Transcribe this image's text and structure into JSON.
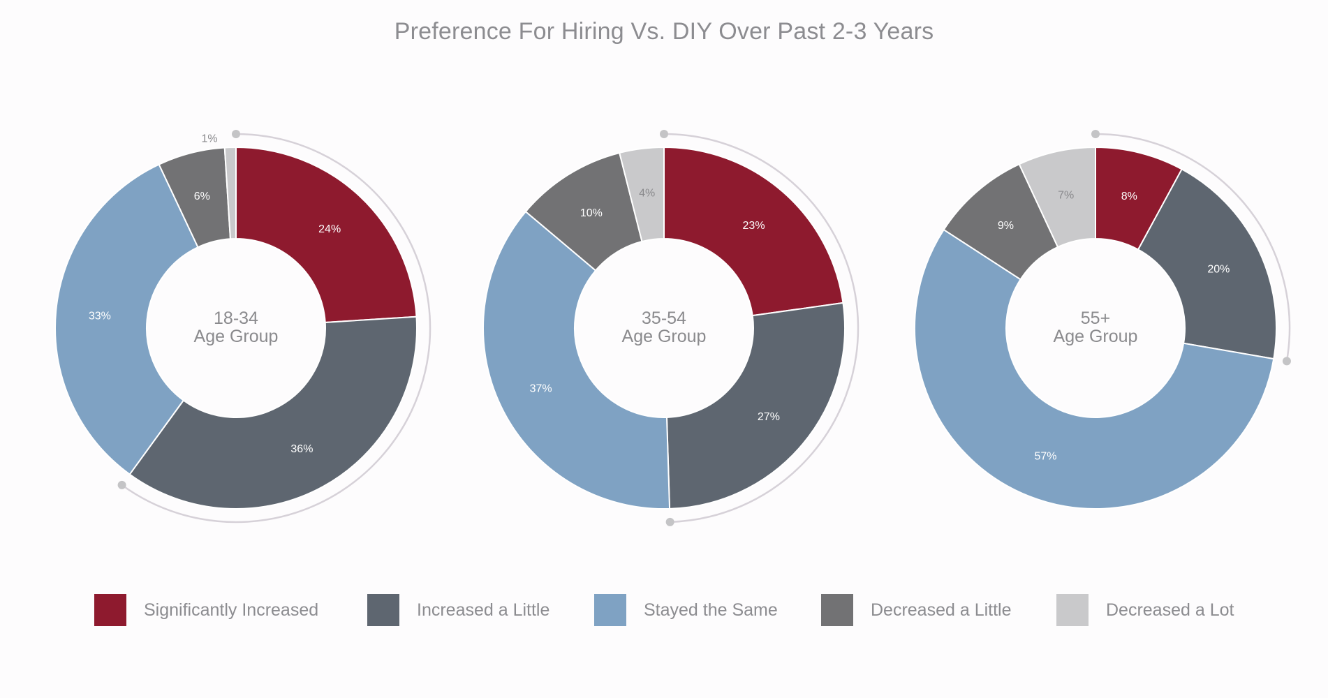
{
  "chart_data": {
    "type": "donut",
    "title": "Preference For Hiring Vs. DIY Over Past 2-3 Years",
    "categories": [
      "Significantly Increased",
      "Increased a Little",
      "Stayed the Same",
      "Decreased a Little",
      "Decreased a Lot"
    ],
    "colors": [
      "#8e1a2e",
      "#5e6670",
      "#7fa2c3",
      "#727274",
      "#c9c9cb"
    ],
    "label_colors": [
      "#ffffff",
      "#ffffff",
      "#ffffff",
      "#ffffff",
      "#8a8a8d"
    ],
    "legend_position": "bottom",
    "charts": [
      {
        "center_line1": "18-34",
        "center_line2": "Age Group",
        "values": [
          24,
          36,
          33,
          6,
          1
        ],
        "labels": [
          "24%",
          "36%",
          "33%",
          "6%",
          "1%"
        ],
        "highlighted_arc": "Significantly Increased + Increased a Little"
      },
      {
        "center_line1": "35-54",
        "center_line2": "Age Group",
        "values": [
          23,
          27,
          37,
          10,
          4
        ],
        "labels": [
          "23%",
          "27%",
          "37%",
          "10%",
          "4%"
        ],
        "highlighted_arc": "Significantly Increased + Increased a Little"
      },
      {
        "center_line1": "55+",
        "center_line2": "Age Group",
        "values": [
          8,
          20,
          57,
          9,
          7
        ],
        "labels": [
          "8%",
          "20%",
          "57%",
          "9%",
          "7%"
        ],
        "highlighted_arc": "Significantly Increased + Increased a Little"
      }
    ]
  }
}
